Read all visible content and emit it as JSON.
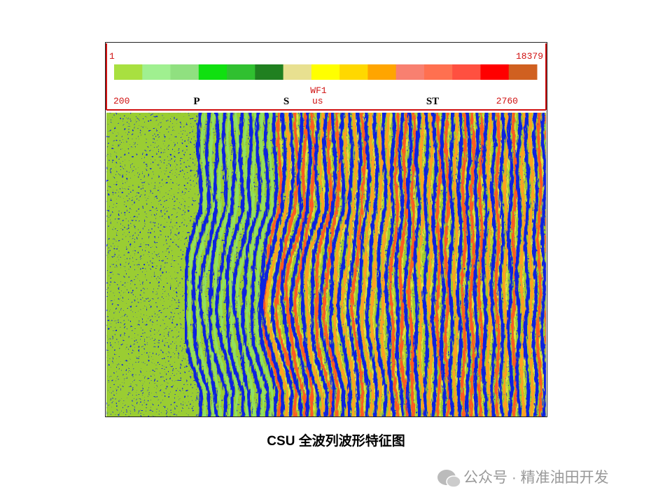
{
  "figure": {
    "colorbar": {
      "min_label": "1",
      "max_label": "18379"
    },
    "header": {
      "curve": "WF1",
      "unit": "us",
      "start": "200",
      "end": "2760",
      "markers": [
        "P",
        "S",
        "ST"
      ]
    },
    "caption": "CSU 全波列波形特征图",
    "watermark": "公众号 · 精准油田开发"
  }
}
